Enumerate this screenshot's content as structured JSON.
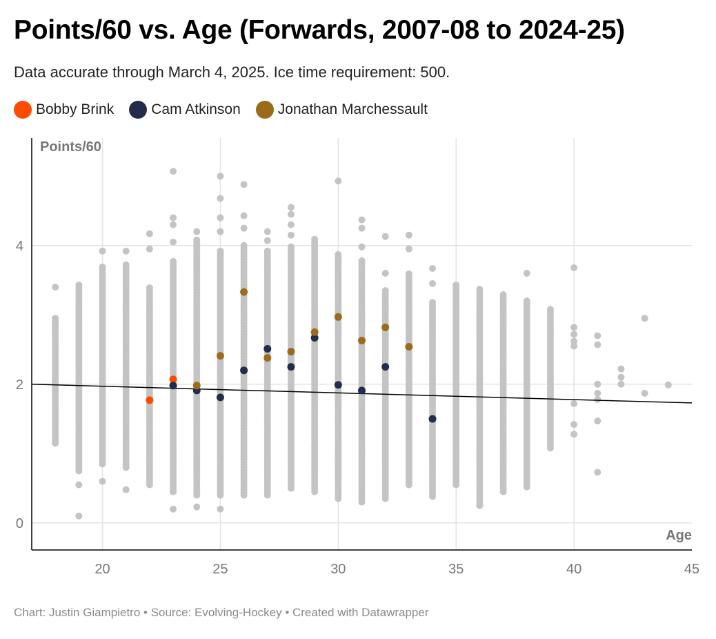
{
  "title": "Points/60 vs. Age (Forwards, 2007-08 to 2024-25)",
  "subtitle": "Data accurate through March 4, 2025. Ice time requirement: 500.",
  "footer": "Chart: Justin Giampietro • Source: Evolving-Hockey • Created with Datawrapper",
  "chart_data": {
    "type": "scatter",
    "xlabel": "Age",
    "ylabel": "Points/60",
    "xlim": [
      17,
      45
    ],
    "ylim": [
      -0.39,
      5.55
    ],
    "xticks": [
      20,
      25,
      30,
      35,
      40,
      45
    ],
    "yticks": [
      0,
      2,
      4
    ],
    "grid": true,
    "legend_placement": "top-left",
    "trendline": {
      "x": [
        17,
        45
      ],
      "y": [
        2.0,
        1.73
      ],
      "color": "#000000"
    },
    "background_color": "#c4c4c4",
    "background": [
      {
        "age": 18,
        "range": [
          1.15,
          2.95
        ],
        "values": [
          3.4
        ]
      },
      {
        "age": 19,
        "range": [
          0.75,
          3.45
        ],
        "values": [
          0.1,
          0.55
        ]
      },
      {
        "age": 20,
        "range": [
          0.85,
          3.7
        ],
        "values": [
          0.6,
          3.92
        ]
      },
      {
        "age": 21,
        "range": [
          0.8,
          3.75
        ],
        "values": [
          0.48,
          3.92
        ]
      },
      {
        "age": 22,
        "range": [
          0.55,
          3.4
        ],
        "values": [
          3.95,
          4.17
        ]
      },
      {
        "age": 23,
        "range": [
          0.45,
          3.8
        ],
        "values": [
          0.2,
          4.05,
          4.3,
          4.4,
          5.07
        ]
      },
      {
        "age": 24,
        "range": [
          0.4,
          4.1
        ],
        "values": [
          0.23,
          4.2
        ]
      },
      {
        "age": 25,
        "range": [
          0.4,
          3.95
        ],
        "values": [
          0.2,
          4.2,
          4.4,
          4.68,
          5.0
        ]
      },
      {
        "age": 26,
        "range": [
          0.4,
          4.0
        ],
        "values": [
          4.25,
          4.43,
          4.88
        ]
      },
      {
        "age": 27,
        "range": [
          0.4,
          3.95
        ],
        "values": [
          4.07,
          4.2
        ]
      },
      {
        "age": 28,
        "range": [
          0.5,
          4.0
        ],
        "values": [
          4.15,
          4.3,
          4.45,
          4.55
        ]
      },
      {
        "age": 29,
        "range": [
          0.45,
          4.1
        ],
        "values": []
      },
      {
        "age": 30,
        "range": [
          0.35,
          3.9
        ],
        "values": [
          4.93
        ]
      },
      {
        "age": 31,
        "range": [
          0.3,
          3.8
        ],
        "values": [
          3.98,
          4.25,
          4.37
        ]
      },
      {
        "age": 32,
        "range": [
          0.35,
          3.35
        ],
        "values": [
          3.6,
          4.13
        ]
      },
      {
        "age": 33,
        "range": [
          0.55,
          3.62
        ],
        "values": [
          3.95,
          4.15
        ]
      },
      {
        "age": 34,
        "range": [
          0.38,
          3.2
        ],
        "values": [
          3.45,
          3.67
        ]
      },
      {
        "age": 35,
        "range": [
          0.55,
          3.45
        ],
        "values": []
      },
      {
        "age": 36,
        "range": [
          0.25,
          3.4
        ],
        "values": []
      },
      {
        "age": 37,
        "range": [
          0.45,
          3.3
        ],
        "values": []
      },
      {
        "age": 38,
        "range": [
          0.52,
          3.2
        ],
        "values": [
          3.6
        ]
      },
      {
        "age": 39,
        "range": [
          1.08,
          3.1
        ],
        "values": []
      },
      {
        "age": 40,
        "range": null,
        "values": [
          1.28,
          1.42,
          1.72,
          2.55,
          2.62,
          2.72,
          2.82,
          3.68
        ]
      },
      {
        "age": 41,
        "range": null,
        "values": [
          0.73,
          1.47,
          1.78,
          1.87,
          2.0,
          2.57,
          2.7
        ]
      },
      {
        "age": 42,
        "range": null,
        "values": [
          2.0,
          2.1,
          2.22
        ]
      },
      {
        "age": 43,
        "range": null,
        "values": [
          1.87,
          2.95
        ]
      },
      {
        "age": 44,
        "range": null,
        "values": [
          1.99
        ]
      }
    ],
    "series": [
      {
        "name": "Bobby Brink",
        "color": "#ff4b00",
        "x": [
          22,
          23
        ],
        "y": [
          1.77,
          2.07
        ]
      },
      {
        "name": "Cam Atkinson",
        "color": "#232d4b",
        "x": [
          23,
          24,
          25,
          26,
          27,
          28,
          29,
          30,
          31,
          32,
          34
        ],
        "y": [
          1.98,
          1.91,
          1.81,
          2.2,
          2.51,
          2.25,
          2.67,
          1.99,
          1.91,
          2.25,
          1.5
        ]
      },
      {
        "name": "Jonathan Marchessault",
        "color": "#9b6b1c",
        "x": [
          24,
          25,
          26,
          27,
          28,
          29,
          30,
          31,
          32,
          33
        ],
        "y": [
          1.98,
          2.41,
          3.33,
          2.38,
          2.47,
          2.75,
          2.97,
          2.63,
          2.82,
          2.54
        ]
      }
    ]
  }
}
